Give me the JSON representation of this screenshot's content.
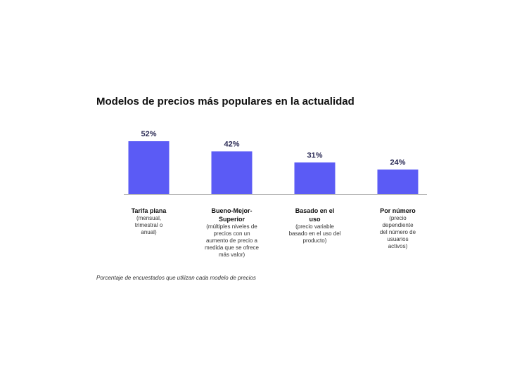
{
  "chart_data": {
    "type": "bar",
    "title": "Modelos de precios más populares en la actualidad",
    "categories": [
      "Tarifa plana",
      "Bueno-Mejor-Superior",
      "Basado en el uso",
      "Por número"
    ],
    "descriptions": [
      "(mensual, trimestral o anual)",
      "(múltiples niveles de precios con un aumento de precio a medida que se ofrece más valor)",
      "(precio variable basado en el uso del producto)",
      "(precio dependiente del número de usuarios activos)"
    ],
    "values": [
      52,
      42,
      31,
      24
    ],
    "value_labels": [
      "52%",
      "42%",
      "31%",
      "24%"
    ],
    "unit": "%",
    "ylim": [
      0,
      52
    ],
    "grid": false,
    "bar_color": "#5b5bf5",
    "baseline_color": "#9a9a9a",
    "note": "Porcentaje de encuestados que utilizan cada modelo de precios"
  }
}
